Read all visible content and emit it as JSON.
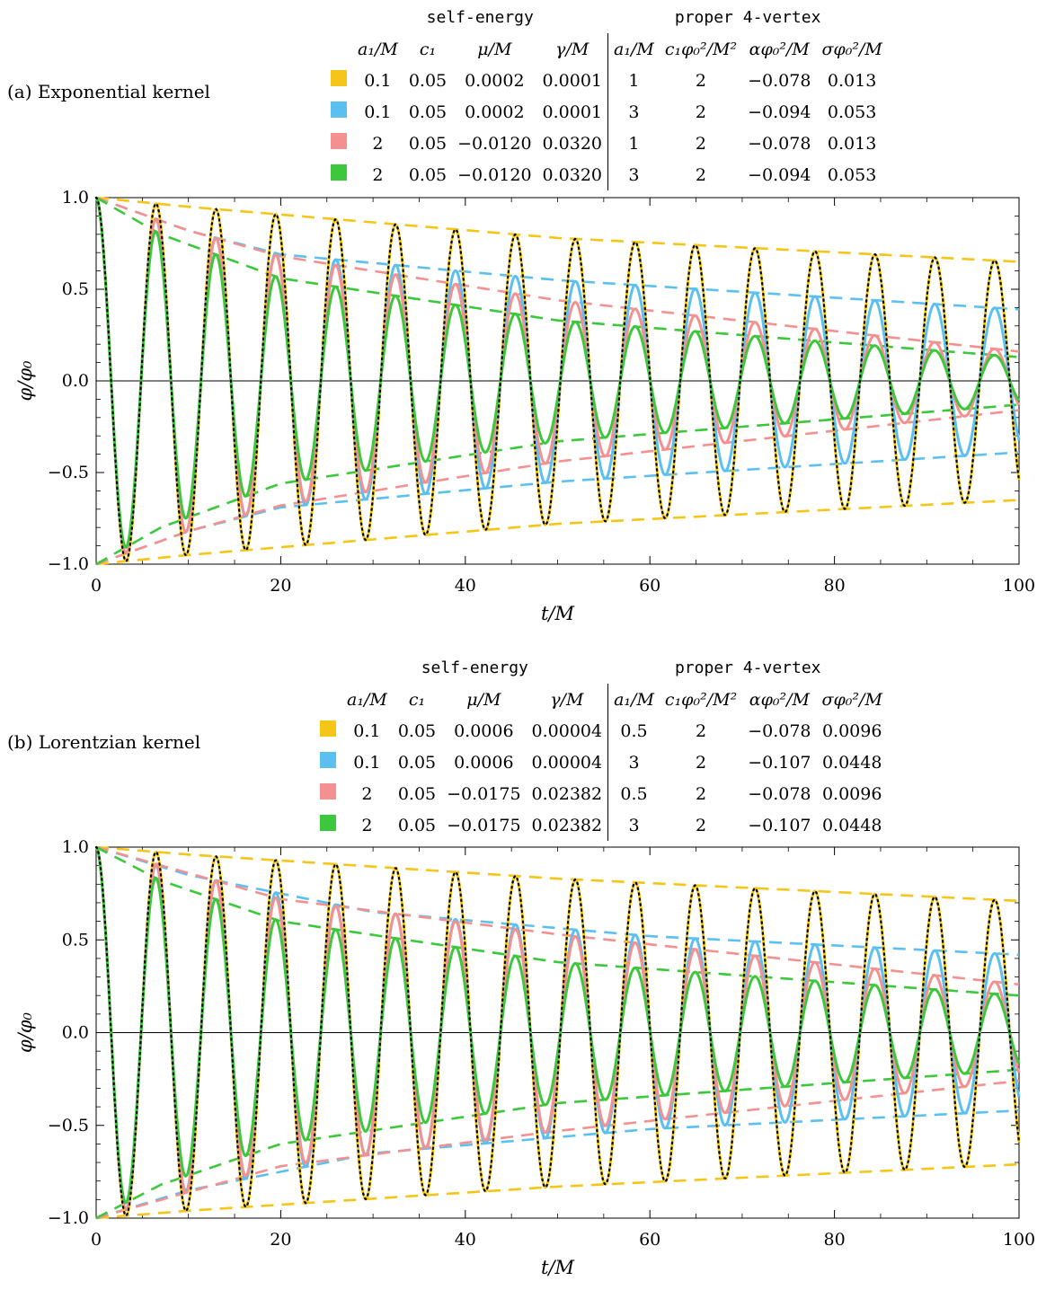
{
  "panels": [
    {
      "label": "(a) Exponential kernel",
      "table": {
        "group1": "self-energy",
        "group2": "proper 4-vertex",
        "headers": [
          "a₁/M",
          "c₁",
          "μ/M",
          "γ/M",
          "a₁/M",
          "c₁φ₀²/M²",
          "αφ₀²/M",
          "σφ₀²/M"
        ],
        "rows": [
          {
            "color": "#f5c518",
            "cells": [
              "0.1",
              "0.05",
              "0.0002",
              "0.0001",
              "1",
              "2",
              "−0.078",
              "0.013"
            ]
          },
          {
            "color": "#5bc0f0",
            "cells": [
              "0.1",
              "0.05",
              "0.0002",
              "0.0001",
              "3",
              "2",
              "−0.094",
              "0.053"
            ]
          },
          {
            "color": "#f59090",
            "cells": [
              "2",
              "0.05",
              "−0.0120",
              "0.0320",
              "1",
              "2",
              "−0.078",
              "0.013"
            ]
          },
          {
            "color": "#3cc83c",
            "cells": [
              "2",
              "0.05",
              "−0.0120",
              "0.0320",
              "3",
              "2",
              "−0.094",
              "0.053"
            ]
          }
        ]
      },
      "chart_data": {
        "type": "line",
        "xlabel": "t/M",
        "ylabel": "φ/φ₀",
        "xlim": [
          0,
          100
        ],
        "ylim": [
          -1.0,
          1.0
        ],
        "xticks": [
          "0",
          "20",
          "40",
          "60",
          "80",
          "100"
        ],
        "yticks": [
          "−1.0",
          "−0.5",
          "0.0",
          "0.5",
          "1.0"
        ],
        "omega": 0.968,
        "series": [
          {
            "color": "#f5c518",
            "envelope_at_t": [
              [
                0,
                1.0
              ],
              [
                10,
                0.95
              ],
              [
                50,
                0.78
              ],
              [
                100,
                0.65
              ]
            ]
          },
          {
            "color": "#5bc0f0",
            "envelope_at_t": [
              [
                0,
                1.0
              ],
              [
                10,
                0.82
              ],
              [
                20,
                0.69
              ],
              [
                50,
                0.55
              ],
              [
                100,
                0.39
              ]
            ]
          },
          {
            "color": "#f59090",
            "envelope_at_t": [
              [
                0,
                1.0
              ],
              [
                10,
                0.82
              ],
              [
                20,
                0.68
              ],
              [
                50,
                0.44
              ],
              [
                100,
                0.16
              ]
            ]
          },
          {
            "color": "#3cc83c",
            "envelope_at_t": [
              [
                0,
                1.0
              ],
              [
                7,
                0.8
              ],
              [
                20,
                0.56
              ],
              [
                50,
                0.33
              ],
              [
                100,
                0.13
              ]
            ]
          }
        ],
        "reference_dotted_color": "#000000"
      }
    },
    {
      "label": "(b) Lorentzian kernel",
      "table": {
        "group1": "self-energy",
        "group2": "proper 4-vertex",
        "headers": [
          "a₁/M",
          "c₁",
          "μ/M",
          "γ/M",
          "a₁/M",
          "c₁φ₀²/M²",
          "αφ₀²/M",
          "σφ₀²/M"
        ],
        "rows": [
          {
            "color": "#f5c518",
            "cells": [
              "0.1",
              "0.05",
              "0.0006",
              "0.00004",
              "0.5",
              "2",
              "−0.078",
              "0.0096"
            ]
          },
          {
            "color": "#5bc0f0",
            "cells": [
              "0.1",
              "0.05",
              "0.0006",
              "0.00004",
              "3",
              "2",
              "−0.107",
              "0.0448"
            ]
          },
          {
            "color": "#f59090",
            "cells": [
              "2",
              "0.05",
              "−0.0175",
              "0.02382",
              "0.5",
              "2",
              "−0.078",
              "0.0096"
            ]
          },
          {
            "color": "#3cc83c",
            "cells": [
              "2",
              "0.05",
              "−0.0175",
              "0.02382",
              "3",
              "2",
              "−0.107",
              "0.0448"
            ]
          }
        ]
      },
      "chart_data": {
        "type": "line",
        "xlabel": "t/M",
        "ylabel": "φ/φ₀",
        "xlim": [
          0,
          100
        ],
        "ylim": [
          -1.0,
          1.0
        ],
        "xticks": [
          "0",
          "20",
          "40",
          "60",
          "80",
          "100"
        ],
        "yticks": [
          "−1.0",
          "−0.5",
          "0.0",
          "0.5",
          "1.0"
        ],
        "omega": 0.968,
        "series": [
          {
            "color": "#f5c518",
            "envelope_at_t": [
              [
                0,
                1.0
              ],
              [
                10,
                0.96
              ],
              [
                50,
                0.83
              ],
              [
                100,
                0.71
              ]
            ]
          },
          {
            "color": "#5bc0f0",
            "envelope_at_t": [
              [
                0,
                1.0
              ],
              [
                10,
                0.85
              ],
              [
                30,
                0.65
              ],
              [
                60,
                0.52
              ],
              [
                100,
                0.42
              ]
            ]
          },
          {
            "color": "#f59090",
            "envelope_at_t": [
              [
                0,
                1.0
              ],
              [
                10,
                0.86
              ],
              [
                20,
                0.72
              ],
              [
                50,
                0.53
              ],
              [
                100,
                0.26
              ]
            ]
          },
          {
            "color": "#3cc83c",
            "envelope_at_t": [
              [
                0,
                1.0
              ],
              [
                7,
                0.82
              ],
              [
                20,
                0.6
              ],
              [
                50,
                0.38
              ],
              [
                100,
                0.2
              ]
            ]
          }
        ],
        "reference_dotted_color": "#000000"
      }
    }
  ]
}
